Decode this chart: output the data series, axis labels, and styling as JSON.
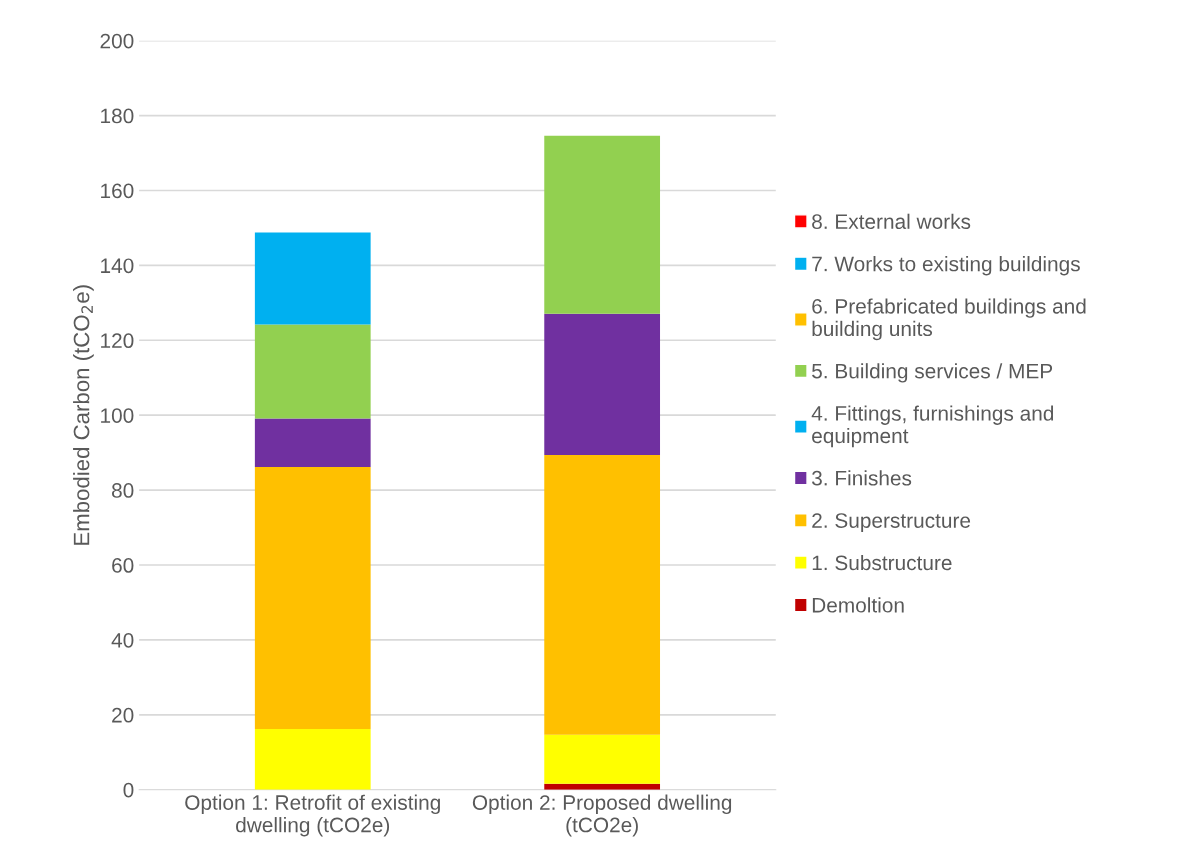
{
  "chart_data": {
    "type": "bar",
    "stacked": true,
    "ylabel": "Embodied Carbon (tCO$_{2}$e)",
    "categories": [
      "Option 1: Retrofit of existing\ndwelling (tCO2e)",
      "Option 2: Proposed dwelling\n(tCO2e)"
    ],
    "series": [
      {
        "name": "Demoltion",
        "color": "#c00000",
        "values": [
          0,
          1.6
        ]
      },
      {
        "name": "1. Substructure",
        "color": "#ffff00",
        "values": [
          16.2,
          13.1
        ]
      },
      {
        "name": "2. Superstructure",
        "color": "#ffc000",
        "values": [
          70.0,
          74.7
        ]
      },
      {
        "name": "3. Finishes",
        "color": "#7030a0",
        "values": [
          12.9,
          37.7
        ]
      },
      {
        "name": "4. Fittings, furnishings and\nequipment",
        "color": "#00b0f0",
        "values": [
          0,
          0
        ]
      },
      {
        "name": "5. Building services / MEP",
        "color": "#92d050",
        "values": [
          25.1,
          47.5
        ]
      },
      {
        "name": "6. Prefabricated buildings and\nbuilding units",
        "color": "#ffc000",
        "values": [
          0,
          0
        ]
      },
      {
        "name": "7. Works to existing buildings",
        "color": "#00b0f0",
        "values": [
          24.6,
          0
        ]
      },
      {
        "name": "8. External works",
        "color": "#ff0000",
        "values": [
          0,
          0
        ]
      }
    ],
    "ylim": [
      0,
      200
    ],
    "yticks": [
      0,
      20,
      40,
      60,
      80,
      100,
      120,
      140,
      160,
      180,
      200
    ],
    "grid": "y",
    "legend": "right"
  }
}
